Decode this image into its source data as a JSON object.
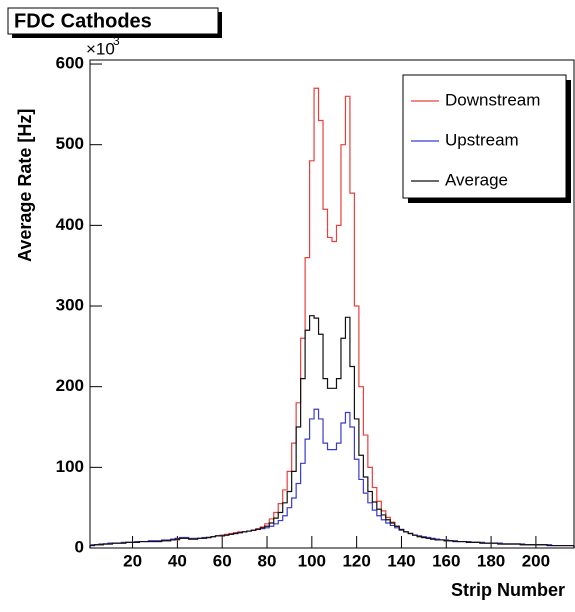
{
  "chart_data": {
    "type": "histogram",
    "title": "FDC Cathodes",
    "xlabel": "Strip Number",
    "ylabel": "Average Rate [Hz]",
    "y_multiplier": "×10",
    "y_multiplier_exponent": "3",
    "bins": [
      1,
      3,
      5,
      7,
      9,
      11,
      13,
      15,
      17,
      19,
      21,
      23,
      25,
      27,
      29,
      31,
      33,
      35,
      37,
      39,
      41,
      43,
      45,
      47,
      49,
      51,
      53,
      55,
      57,
      59,
      61,
      63,
      65,
      67,
      69,
      71,
      73,
      75,
      77,
      79,
      81,
      83,
      85,
      87,
      89,
      91,
      93,
      95,
      97,
      99,
      101,
      103,
      105,
      107,
      109,
      111,
      113,
      115,
      117,
      119,
      121,
      123,
      125,
      127,
      129,
      131,
      133,
      135,
      137,
      139,
      141,
      143,
      145,
      147,
      149,
      151,
      153,
      155,
      157,
      159,
      161,
      163,
      165,
      167,
      169,
      171,
      173,
      175,
      177,
      179,
      181,
      183,
      185,
      187,
      189,
      191,
      193,
      195,
      197,
      199,
      201,
      203,
      205,
      207,
      209,
      211,
      213,
      215,
      217
    ],
    "series": [
      {
        "name": "Downstream",
        "color": "#e8403c",
        "values": [
          3,
          4,
          4,
          5,
          5,
          6,
          6,
          6,
          7,
          7,
          7,
          8,
          8,
          8,
          8,
          8,
          9,
          9,
          10,
          10,
          12,
          12,
          11,
          11,
          12,
          12,
          13,
          14,
          15,
          16,
          17,
          18,
          19,
          20,
          20,
          21,
          22,
          24,
          26,
          30,
          36,
          44,
          55,
          72,
          95,
          130,
          180,
          260,
          360,
          480,
          570,
          530,
          420,
          385,
          380,
          400,
          500,
          560,
          440,
          300,
          200,
          140,
          100,
          75,
          58,
          46,
          38,
          32,
          27,
          23,
          20,
          18,
          16,
          14,
          13,
          12,
          11,
          10,
          10,
          9,
          9,
          8,
          8,
          8,
          7,
          7,
          7,
          6,
          6,
          6,
          6,
          5,
          5,
          5,
          5,
          5,
          4,
          4,
          4,
          4,
          4,
          4,
          3,
          3,
          3,
          3,
          3,
          3
        ]
      },
      {
        "name": "Upstream",
        "color": "#3a3ad0",
        "values": [
          4,
          4,
          5,
          5,
          6,
          6,
          6,
          7,
          7,
          7,
          8,
          8,
          8,
          9,
          9,
          9,
          10,
          10,
          11,
          12,
          13,
          13,
          12,
          12,
          12,
          13,
          13,
          14,
          15,
          15,
          16,
          17,
          18,
          19,
          20,
          21,
          22,
          23,
          24,
          25,
          27,
          30,
          34,
          40,
          50,
          62,
          80,
          105,
          135,
          160,
          172,
          160,
          130,
          122,
          122,
          130,
          155,
          168,
          150,
          110,
          85,
          68,
          56,
          47,
          40,
          35,
          31,
          28,
          25,
          22,
          20,
          18,
          16,
          15,
          14,
          13,
          12,
          11,
          10,
          10,
          9,
          9,
          8,
          8,
          8,
          7,
          7,
          7,
          6,
          6,
          6,
          6,
          5,
          5,
          5,
          5,
          5,
          4,
          4,
          4,
          4,
          4,
          4,
          3,
          3,
          3,
          3,
          3
        ]
      },
      {
        "name": "Average",
        "color": "#111111",
        "values": [
          3,
          4,
          4,
          5,
          5,
          6,
          6,
          6,
          7,
          7,
          7,
          8,
          8,
          8,
          8,
          8,
          9,
          9,
          10,
          11,
          12,
          12,
          11,
          11,
          12,
          12,
          13,
          14,
          15,
          15,
          16,
          17,
          18,
          19,
          20,
          21,
          22,
          23,
          25,
          27,
          31,
          37,
          44,
          56,
          70,
          95,
          150,
          210,
          270,
          288,
          285,
          265,
          210,
          198,
          198,
          210,
          260,
          286,
          225,
          160,
          115,
          88,
          70,
          57,
          48,
          41,
          35,
          31,
          27,
          23,
          20,
          18,
          16,
          14,
          13,
          12,
          11,
          10,
          10,
          9,
          9,
          8,
          8,
          8,
          7,
          7,
          7,
          6,
          6,
          6,
          6,
          5,
          5,
          5,
          5,
          5,
          4,
          4,
          4,
          4,
          4,
          4,
          3,
          3,
          3,
          3,
          3,
          3
        ]
      }
    ],
    "xlim": [
      1,
      217
    ],
    "ylim": [
      0,
      605
    ],
    "xticks": [
      20,
      40,
      60,
      80,
      100,
      120,
      140,
      160,
      180,
      200
    ],
    "yticks": [
      0,
      100,
      200,
      300,
      400,
      500,
      600
    ],
    "legend": "top-right"
  }
}
